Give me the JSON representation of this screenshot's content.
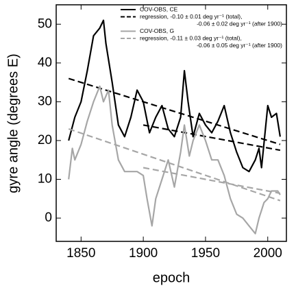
{
  "chart_data": {
    "type": "line",
    "xlabel": "epoch",
    "ylabel": "gyre angle (degrees E)",
    "xlim": [
      1830,
      2015
    ],
    "ylim": [
      -6,
      55
    ],
    "xticks": [
      1850,
      1900,
      1950,
      2000
    ],
    "yticks": [
      0,
      10,
      20,
      30,
      40,
      50
    ],
    "series": [
      {
        "name": "COV-OBS, CE",
        "color": "#000000",
        "dashed": false,
        "legend_swatch": true,
        "x": [
          1840,
          1845,
          1850,
          1855,
          1860,
          1865,
          1868,
          1870,
          1875,
          1880,
          1885,
          1890,
          1895,
          1900,
          1905,
          1910,
          1915,
          1920,
          1925,
          1930,
          1933,
          1936,
          1940,
          1945,
          1950,
          1955,
          1960,
          1965,
          1970,
          1975,
          1980,
          1985,
          1990,
          1993,
          1995,
          2000,
          2003,
          2007,
          2010
        ],
        "values": [
          20,
          26,
          30,
          38,
          47,
          49,
          51,
          45,
          35,
          24,
          21,
          26,
          33,
          30,
          22,
          26,
          29,
          23,
          21,
          26,
          38,
          30,
          21,
          27,
          24,
          22,
          25,
          29,
          22,
          17,
          13,
          12,
          15,
          18,
          13,
          29,
          26,
          27,
          21
        ]
      },
      {
        "name": "regression, -0.10 ± 0.01 deg yr⁻¹ (total),",
        "color": "#000000",
        "dashed": true,
        "legend_swatch": true,
        "x": [
          1840,
          2010
        ],
        "values": [
          36,
          19
        ]
      },
      {
        "name": "-0.06 ± 0.02 deg yr⁻¹ (after 1900)",
        "color": "#000000",
        "dashed": true,
        "legend_swatch": false,
        "x": [
          1900,
          2010
        ],
        "values": [
          24,
          17.5
        ]
      },
      {
        "name": "COV-OBS, G",
        "color": "#a6a6a6",
        "dashed": false,
        "legend_swatch": true,
        "x": [
          1840,
          1843,
          1845,
          1850,
          1855,
          1860,
          1865,
          1868,
          1872,
          1875,
          1880,
          1885,
          1890,
          1895,
          1900,
          1903,
          1907,
          1910,
          1915,
          1920,
          1925,
          1930,
          1933,
          1937,
          1940,
          1945,
          1950,
          1955,
          1960,
          1965,
          1970,
          1975,
          1980,
          1985,
          1990,
          1993,
          1997,
          2000,
          2003,
          2008,
          2010
        ],
        "values": [
          10,
          18,
          15,
          19,
          25,
          30,
          34,
          30,
          33,
          24,
          15,
          12,
          12,
          12,
          11,
          5,
          -2,
          5,
          10,
          15,
          8,
          17,
          24,
          16,
          20,
          24,
          20,
          15,
          15,
          11,
          5,
          1,
          0,
          -2,
          -4,
          0,
          4,
          5,
          7,
          7,
          6
        ]
      },
      {
        "name": "regression, -0.11 ± 0.03 deg yr⁻¹ (total),",
        "color": "#a6a6a6",
        "dashed": true,
        "legend_swatch": true,
        "x": [
          1840,
          2010
        ],
        "values": [
          23,
          4.5
        ]
      },
      {
        "name": "-0.06 ± 0.05 deg yr⁻¹ (after 1900)",
        "color": "#a6a6a6",
        "dashed": true,
        "legend_swatch": false,
        "x": [
          1900,
          2010
        ],
        "values": [
          13,
          6.4
        ]
      }
    ]
  }
}
